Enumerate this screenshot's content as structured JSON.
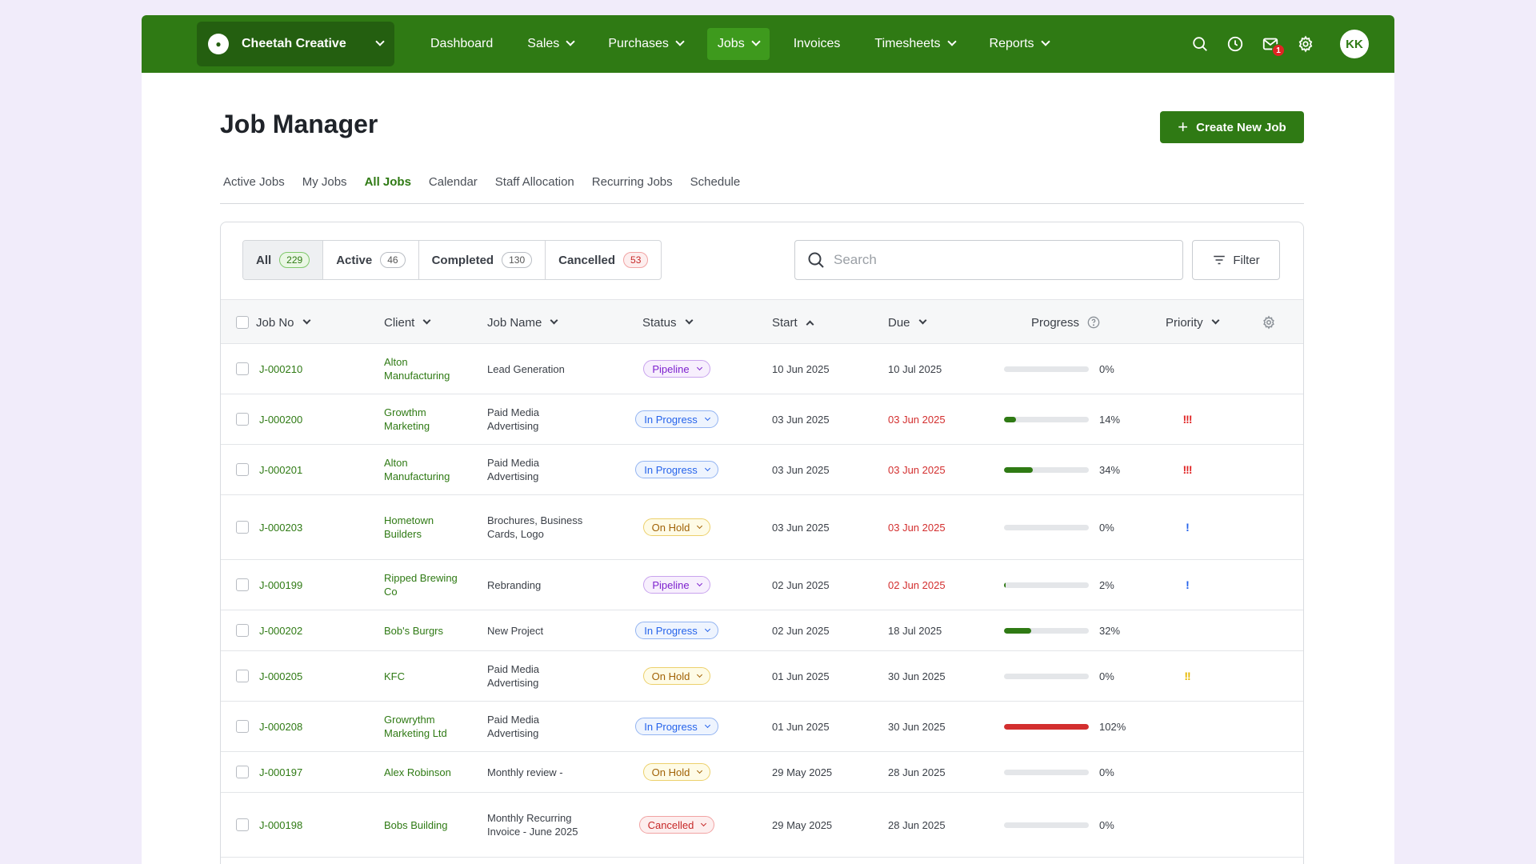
{
  "nav": {
    "org_name": "Cheetah Creative",
    "items": [
      {
        "label": "Dashboard",
        "dropdown": false,
        "active": false
      },
      {
        "label": "Sales",
        "dropdown": true,
        "active": false
      },
      {
        "label": "Purchases",
        "dropdown": true,
        "active": false
      },
      {
        "label": "Jobs",
        "dropdown": true,
        "active": true
      },
      {
        "label": "Invoices",
        "dropdown": false,
        "active": false
      },
      {
        "label": "Timesheets",
        "dropdown": true,
        "active": false
      },
      {
        "label": "Reports",
        "dropdown": true,
        "active": false
      }
    ],
    "notification_count": "1",
    "avatar_initials": "KK"
  },
  "page": {
    "title": "Job Manager",
    "create_button": "Create New Job",
    "tabs": [
      "Active Jobs",
      "My Jobs",
      "All Jobs",
      "Calendar",
      "Staff Allocation",
      "Recurring Jobs",
      "Schedule"
    ],
    "active_tab": "All Jobs"
  },
  "segments": [
    {
      "label": "All",
      "count": "229",
      "style": "green"
    },
    {
      "label": "Active",
      "count": "46",
      "style": "grey"
    },
    {
      "label": "Completed",
      "count": "130",
      "style": "grey"
    },
    {
      "label": "Cancelled",
      "count": "53",
      "style": "red"
    }
  ],
  "search": {
    "placeholder": "Search",
    "value": ""
  },
  "filter_label": "Filter",
  "table": {
    "columns": [
      "Job No",
      "Client",
      "Job Name",
      "Status",
      "Start",
      "Due",
      "Progress",
      "Priority"
    ],
    "rows": [
      {
        "job_no": "J-000210",
        "client": "Alton Manufacturing",
        "job_name": "Lead Generation",
        "status": "Pipeline",
        "start": "10 Jun 2025",
        "due": "10 Jul 2025",
        "due_overdue": false,
        "progress": 0,
        "progress_label": "0%",
        "priority": ""
      },
      {
        "job_no": "J-000200",
        "client": "Growthm Marketing",
        "job_name": "Paid Media Advertising",
        "status": "In Progress",
        "start": "03 Jun 2025",
        "due": "03 Jun 2025",
        "due_overdue": true,
        "progress": 14,
        "progress_label": "14%",
        "priority": "!!!"
      },
      {
        "job_no": "J-000201",
        "client": "Alton Manufacturing",
        "job_name": "Paid Media Advertising",
        "status": "In Progress",
        "start": "03 Jun 2025",
        "due": "03 Jun 2025",
        "due_overdue": true,
        "progress": 34,
        "progress_label": "34%",
        "priority": "!!!"
      },
      {
        "job_no": "J-000203",
        "client": "Hometown Builders",
        "job_name": "Brochures, Business Cards, Logo",
        "status": "On Hold",
        "start": "03 Jun 2025",
        "due": "03 Jun 2025",
        "due_overdue": true,
        "progress": 0,
        "progress_label": "0%",
        "priority": "!"
      },
      {
        "job_no": "J-000199",
        "client": "Ripped Brewing Co",
        "job_name": "Rebranding",
        "status": "Pipeline",
        "start": "02 Jun 2025",
        "due": "02 Jun 2025",
        "due_overdue": true,
        "progress": 2,
        "progress_label": "2%",
        "priority": "!"
      },
      {
        "job_no": "J-000202",
        "client": "Bob's Burgrs",
        "job_name": "New Project",
        "status": "In Progress",
        "start": "02 Jun 2025",
        "due": "18 Jul 2025",
        "due_overdue": false,
        "progress": 32,
        "progress_label": "32%",
        "priority": ""
      },
      {
        "job_no": "J-000205",
        "client": "KFC",
        "job_name": "Paid Media Advertising",
        "status": "On Hold",
        "start": "01 Jun 2025",
        "due": "30 Jun 2025",
        "due_overdue": false,
        "progress": 0,
        "progress_label": "0%",
        "priority": "!!"
      },
      {
        "job_no": "J-000208",
        "client": "Growrythm Marketing Ltd",
        "job_name": "Paid Media Advertising",
        "status": "In Progress",
        "start": "01 Jun 2025",
        "due": "30 Jun 2025",
        "due_overdue": false,
        "progress": 102,
        "progress_label": "102%",
        "priority": ""
      },
      {
        "job_no": "J-000197",
        "client": "Alex Robinson",
        "job_name": "Monthly review -",
        "status": "On Hold",
        "start": "29 May 2025",
        "due": "28 Jun 2025",
        "due_overdue": false,
        "progress": 0,
        "progress_label": "0%",
        "priority": ""
      },
      {
        "job_no": "J-000198",
        "client": "Bobs Building",
        "job_name": "Monthly Recurring Invoice - June 2025",
        "status": "Cancelled",
        "start": "29 May 2025",
        "due": "28 Jun 2025",
        "due_overdue": false,
        "progress": 0,
        "progress_label": "0%",
        "priority": ""
      }
    ]
  },
  "colors": {
    "brand": "#2f7a14",
    "overdue": "#d32f2f",
    "progress_normal": "#2f7a14",
    "progress_over": "#d32f2f",
    "priority_high": "#e02424",
    "priority_medium": "#e6b800",
    "priority_low": "#2563eb"
  }
}
